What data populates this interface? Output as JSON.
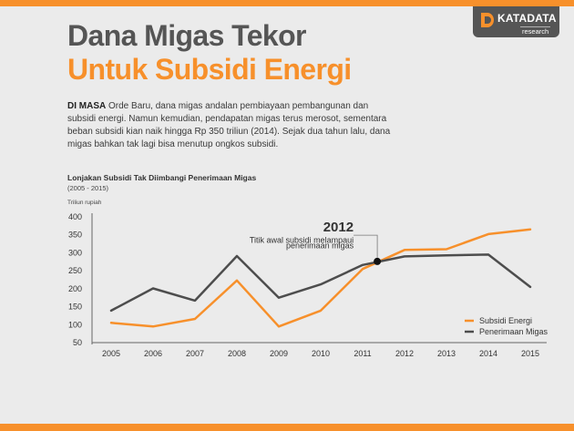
{
  "colors": {
    "accent": "#f7902b",
    "title_dark": "#555555",
    "series_dark": "#4d4d4d",
    "background": "#ebebeb"
  },
  "logo": {
    "icon": "katadata-d-icon",
    "text": "KATADATA",
    "sub": "research"
  },
  "headline": {
    "line1": "Dana Migas Tekor",
    "line2": "Untuk Subsidi Energi"
  },
  "lede": {
    "lead": "DI MASA",
    "text": " Orde Baru, dana migas andalan pembiayaan pembangunan dan subsidi energi. Namun kemudian, pendapatan migas terus merosot, sementara beban subsidi kian naik hingga Rp 350 triliun (2014). Sejak dua tahun lalu, dana migas bahkan tak lagi bisa menutup ongkos subsidi."
  },
  "chart_data": {
    "type": "line",
    "title": "Lonjakan Subsidi Tak Diimbangi Penerimaan Migas",
    "subtitle": "(2005 - 2015)",
    "ylabel": "Triliun rupiah",
    "ylim": [
      50,
      400
    ],
    "yticks": [
      50,
      100,
      150,
      200,
      250,
      300,
      350,
      400
    ],
    "x": [
      2005,
      2006,
      2007,
      2008,
      2009,
      2010,
      2011,
      2012,
      2013,
      2014,
      2015
    ],
    "series": [
      {
        "name": "Subsidi Energi",
        "color": "#f7902b",
        "values": [
          105,
          95,
          116,
          223,
          95,
          139,
          255,
          308,
          310,
          352,
          365
        ]
      },
      {
        "name": "Penerimaan Migas",
        "color": "#4d4d4d",
        "values": [
          139,
          201,
          167,
          291,
          175,
          212,
          266,
          290,
          293,
          295,
          205
        ]
      }
    ],
    "crossing": {
      "x": 2011.35,
      "y": 276
    },
    "annotation": {
      "year": "2012",
      "text_line1": "Titik awal subsidi melampaui",
      "text_line2": "penerimaan migas"
    },
    "legend_position": "bottom-right",
    "grid": false
  }
}
